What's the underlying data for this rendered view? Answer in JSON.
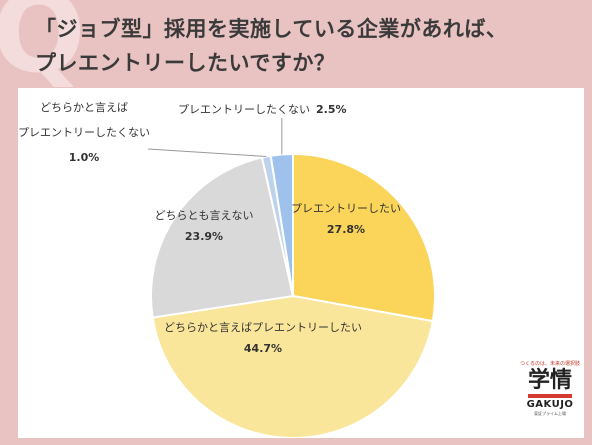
{
  "title": {
    "line1": "「ジョブ型」採用を実施している企業があれば、",
    "line2": "プレエントリーしたいですか？"
  },
  "colors": {
    "background": "#e8c3c1",
    "panel": "#ffffff",
    "slice_1": "#fbd45a",
    "slice_2": "#fae69a",
    "slice_3": "#d9d9d9",
    "slice_4": "#bdd3ec",
    "slice_5": "#9ec2eb"
  },
  "chart_data": {
    "type": "pie",
    "slices": [
      {
        "label": "プレエントリーしたい",
        "value": 27.8,
        "display": "27.8%"
      },
      {
        "label": "どちらかと言えばプレエントリーしたい",
        "value": 44.7,
        "display": "44.7%"
      },
      {
        "label": "どちらとも言えない",
        "value": 23.9,
        "display": "23.9%"
      },
      {
        "label_lines": [
          "どちらかと言えば",
          "プレエントリーしたくない"
        ],
        "value": 1.0,
        "display": "1.0%"
      },
      {
        "label": "プレエントリーしたくない",
        "value": 2.5,
        "display": "2.5%"
      }
    ]
  },
  "logo": {
    "tagline": "つくるのは、未来の選択肢",
    "main": "学情",
    "english": "GAKUJO",
    "sub": "東証プライム上場"
  }
}
